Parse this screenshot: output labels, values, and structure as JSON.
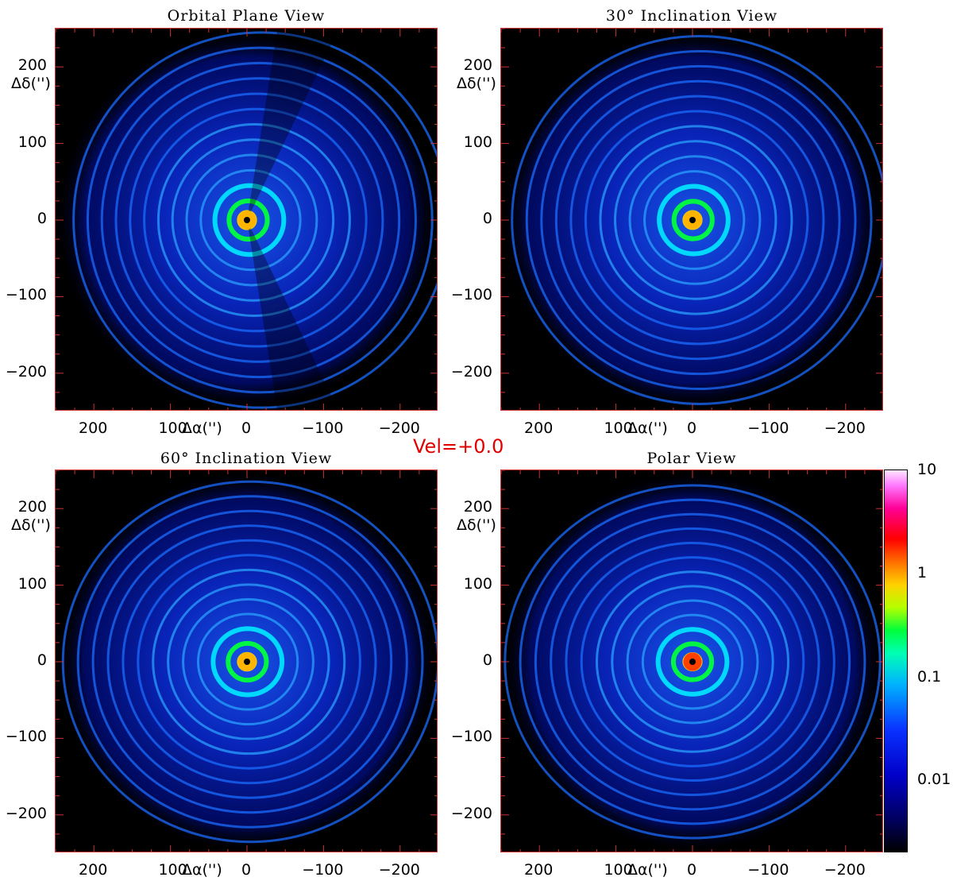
{
  "figure": {
    "velocity_label": "Vel=+0.0"
  },
  "panels": [
    {
      "title": "Orbital Plane View"
    },
    {
      "title": "30° Inclination View"
    },
    {
      "title": "60° Inclination View"
    },
    {
      "title": "Polar View"
    }
  ],
  "axes": {
    "xlabel": "Δα('')",
    "ylabel": "Δδ('')",
    "x_ticks": [
      "200",
      "100",
      "0",
      "−100",
      "−200"
    ],
    "y_ticks": [
      "200",
      "100",
      "0",
      "−100",
      "−200"
    ]
  },
  "colorbar": {
    "scale": "log",
    "range": [
      0.002,
      10
    ],
    "ticks": [
      "10",
      "1",
      "0.1",
      "0.01"
    ],
    "colors": [
      "#000000",
      "#0000c8",
      "#00b4ff",
      "#00ff3c",
      "#ffd200",
      "#ff0000",
      "#ff78ff",
      "#ffe6ff"
    ]
  },
  "chart_data": [
    {
      "type": "heatmap",
      "title": "Orbital Plane View",
      "xlabel": "Δα('')",
      "ylabel": "Δδ('')",
      "xlim": [
        250,
        -250
      ],
      "ylim": [
        -250,
        250
      ],
      "x_ticks": [
        200,
        100,
        0,
        -100,
        -200
      ],
      "y_ticks": [
        200,
        100,
        0,
        -100,
        -200
      ],
      "colorscale": "log",
      "peak_position": [
        0,
        0
      ],
      "ring_radii": [
        10,
        25,
        45,
        65,
        85,
        105,
        125,
        145,
        165,
        185,
        205,
        225,
        245
      ],
      "ring_offset_x": -20,
      "wedge": true
    },
    {
      "type": "heatmap",
      "title": "30° Inclination View",
      "xlabel": "Δα('')",
      "ylabel": "Δδ('')",
      "xlim": [
        250,
        -250
      ],
      "ylim": [
        -250,
        250
      ],
      "x_ticks": [
        200,
        100,
        0,
        -100,
        -200
      ],
      "y_ticks": [
        200,
        100,
        0,
        -100,
        -200
      ],
      "colorscale": "log",
      "peak_position": [
        0,
        0
      ],
      "ring_radii": [
        10,
        25,
        45,
        65,
        85,
        105,
        125,
        145,
        165,
        185,
        205,
        225,
        245
      ],
      "ring_offset_x": -10,
      "wedge": false
    },
    {
      "type": "heatmap",
      "title": "60° Inclination View",
      "xlabel": "Δα('')",
      "ylabel": "Δδ('')",
      "xlim": [
        250,
        -250
      ],
      "ylim": [
        -250,
        250
      ],
      "x_ticks": [
        200,
        100,
        0,
        -100,
        -200
      ],
      "y_ticks": [
        200,
        100,
        0,
        -100,
        -200
      ],
      "colorscale": "log",
      "peak_position": [
        0,
        0
      ],
      "ring_radii": [
        10,
        25,
        45,
        65,
        85,
        105,
        125,
        145,
        165,
        185,
        205,
        225,
        245
      ],
      "ring_offset_x": -5,
      "wedge": false
    },
    {
      "type": "heatmap",
      "title": "Polar View",
      "xlabel": "Δα('')",
      "ylabel": "Δδ('')",
      "xlim": [
        250,
        -250
      ],
      "ylim": [
        -250,
        250
      ],
      "x_ticks": [
        200,
        100,
        0,
        -100,
        -200
      ],
      "y_ticks": [
        200,
        100,
        0,
        -100,
        -200
      ],
      "colorscale": "log",
      "peak_position": [
        0,
        0
      ],
      "ring_radii": [
        10,
        25,
        45,
        65,
        85,
        105,
        125,
        145,
        165,
        185,
        205,
        225,
        245
      ],
      "ring_offset_x": 0,
      "wedge": false
    }
  ]
}
